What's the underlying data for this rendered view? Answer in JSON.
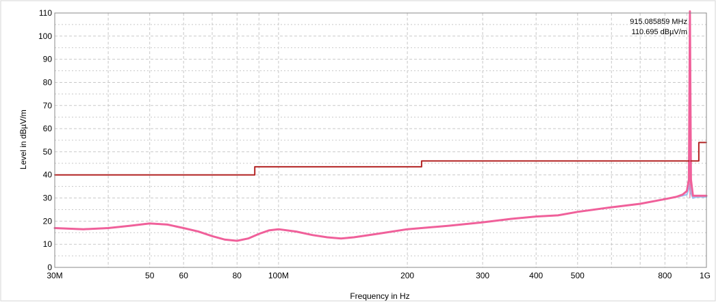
{
  "chart_data": {
    "type": "line",
    "title": "",
    "xlabel": "Frequency in Hz",
    "ylabel": "Level in dBµV/m",
    "x_scale": "log",
    "xlim_hz": [
      30000000,
      1000000000
    ],
    "ylim": [
      0,
      110
    ],
    "grid": true,
    "legend": "none",
    "x_ticks": [
      {
        "value": 30000000,
        "label": "30M"
      },
      {
        "value": 50000000,
        "label": "50"
      },
      {
        "value": 60000000,
        "label": "60"
      },
      {
        "value": 80000000,
        "label": "80"
      },
      {
        "value": 100000000,
        "label": "100M"
      },
      {
        "value": 200000000,
        "label": "200"
      },
      {
        "value": 300000000,
        "label": "300"
      },
      {
        "value": 400000000,
        "label": "400"
      },
      {
        "value": 500000000,
        "label": "500"
      },
      {
        "value": 800000000,
        "label": "800"
      },
      {
        "value": 1000000000,
        "label": "1G"
      }
    ],
    "y_ticks": [
      0,
      10,
      20,
      30,
      40,
      50,
      60,
      70,
      80,
      90,
      100,
      110
    ],
    "series": [
      {
        "role": "limit",
        "color": "#b22222",
        "x_hz": [
          30000000,
          88000000,
          88000000,
          216000000,
          216000000,
          960000000,
          960000000,
          1000000000
        ],
        "y": [
          40,
          40,
          43.5,
          43.5,
          46,
          46,
          54,
          54
        ]
      },
      {
        "role": "measurement-secondary",
        "color": "#8fb8ec",
        "x_hz": [
          30000000,
          35000000,
          40000000,
          45000000,
          50000000,
          55000000,
          60000000,
          65000000,
          70000000,
          75000000,
          80000000,
          85000000,
          90000000,
          95000000,
          100000000,
          110000000,
          120000000,
          130000000,
          140000000,
          150000000,
          170000000,
          200000000,
          250000000,
          300000000,
          350000000,
          400000000,
          450000000,
          500000000,
          600000000,
          700000000,
          800000000,
          850000000,
          880000000,
          900000000,
          910000000,
          915000000,
          920000000,
          930000000,
          950000000,
          1000000000
        ],
        "y": [
          17,
          16.5,
          17,
          18,
          19,
          18.5,
          17,
          15.5,
          13.5,
          12,
          11.5,
          12.5,
          14.5,
          16,
          16.5,
          15.5,
          14,
          13,
          12.5,
          13,
          14.5,
          16.5,
          18,
          19.5,
          21,
          22,
          22.5,
          24,
          26,
          27.5,
          29.5,
          30.5,
          31,
          31.5,
          34,
          36,
          32,
          30,
          30.5,
          30.5
        ]
      },
      {
        "role": "measurement",
        "color": "#f0609a",
        "x_hz": [
          30000000,
          35000000,
          40000000,
          45000000,
          50000000,
          55000000,
          60000000,
          65000000,
          70000000,
          75000000,
          80000000,
          85000000,
          90000000,
          95000000,
          100000000,
          110000000,
          120000000,
          130000000,
          140000000,
          150000000,
          170000000,
          200000000,
          250000000,
          300000000,
          350000000,
          400000000,
          450000000,
          500000000,
          600000000,
          700000000,
          800000000,
          850000000,
          880000000,
          900000000,
          910000000,
          915085859,
          920000000,
          930000000,
          950000000,
          1000000000
        ],
        "y": [
          17,
          16.5,
          17,
          18,
          19,
          18.5,
          17,
          15.5,
          13.5,
          12,
          11.5,
          12.5,
          14.5,
          16,
          16.5,
          15.5,
          14,
          13,
          12.5,
          13,
          14.5,
          16.5,
          18,
          19.5,
          21,
          22,
          22.5,
          24,
          26,
          27.5,
          29.5,
          30.5,
          31.5,
          33,
          38,
          110.695,
          38,
          31,
          31,
          31
        ]
      }
    ],
    "annotations": [
      {
        "text": "915.085859 MHz",
        "x_hz": 915085859,
        "y": 110.695
      },
      {
        "text": "110.695 dBµV/m",
        "x_hz": 915085859,
        "y": 110.695
      }
    ]
  }
}
